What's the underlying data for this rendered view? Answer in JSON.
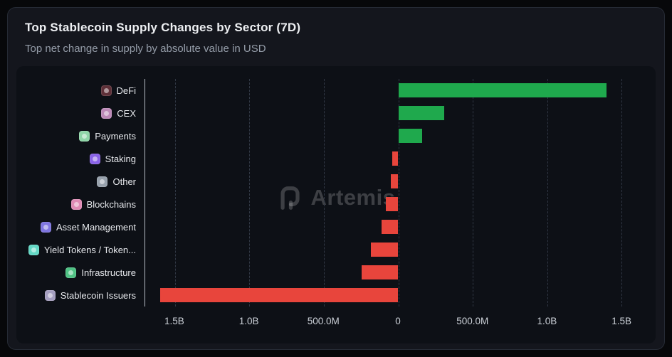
{
  "card": {
    "title": "Top Stablecoin Supply Changes by Sector (7D)",
    "subtitle": "Top net change in supply by absolute value in USD"
  },
  "watermark": {
    "text": "Artemis"
  },
  "chart_data": {
    "type": "bar",
    "orientation": "horizontal",
    "title": "Top Stablecoin Supply Changes by Sector (7D)",
    "subtitle": "Top net change in supply by absolute value in USD",
    "categories": [
      "DeFi",
      "CEX",
      "Payments",
      "Staking",
      "Other",
      "Blockchains",
      "Asset Management",
      "Yield Tokens / Token...",
      "Infrastructure",
      "Stablecoin Issuers"
    ],
    "values": [
      1400000000,
      310000000,
      160000000,
      -40000000,
      -50000000,
      -85000000,
      -110000000,
      -185000000,
      -245000000,
      -1600000000
    ],
    "category_icon_colors": [
      "#5e3038",
      "#bd8ab8",
      "#8fd6a8",
      "#8a63e8",
      "#97a1ac",
      "#e08bb5",
      "#7f76e0",
      "#63d8c5",
      "#4fc284",
      "#a59fc0"
    ],
    "x_tick_labels": [
      "1.5B",
      "1.0B",
      "500.0M",
      "0",
      "500.0M",
      "1.0B",
      "1.5B"
    ],
    "x_tick_values": [
      -1500000000,
      -1000000000,
      -500000000,
      0,
      500000000,
      1000000000,
      1500000000
    ],
    "xlim": [
      -1700000000,
      1700000000
    ],
    "positive_color": "#1fa94d",
    "negative_color": "#e8453c",
    "grid": "dashed-vertical",
    "legend": "none",
    "xlabel": "",
    "ylabel": ""
  }
}
